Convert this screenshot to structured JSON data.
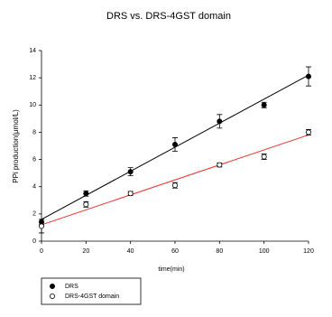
{
  "chart_data": {
    "type": "scatter",
    "title": "DRS vs. DRS-4GST domain",
    "x_label": "time(min)",
    "y_label": "PPi production(μmol/L)",
    "xlim": [
      0,
      120
    ],
    "xticks": [
      0,
      20,
      40,
      60,
      80,
      100,
      120
    ],
    "ylim": [
      0,
      14
    ],
    "yticks": [
      0,
      2,
      4,
      6,
      8,
      10,
      12,
      14
    ],
    "legend": "bottom-left",
    "series": [
      {
        "name": "DRS",
        "color": "#000000",
        "marker": "filled",
        "x": [
          0,
          20,
          40,
          60,
          80,
          100,
          120
        ],
        "values": [
          1.4,
          3.5,
          5.1,
          7.1,
          8.8,
          10.0,
          12.1
        ],
        "errors": [
          0.2,
          0.2,
          0.3,
          0.5,
          0.5,
          0.2,
          0.7
        ],
        "fit_color": "#000000",
        "fit_x": [
          0,
          120
        ],
        "fit": [
          1.6,
          12.2
        ]
      },
      {
        "name": "DRS-4GST domain",
        "color": "#000000",
        "marker": "open",
        "x": [
          0,
          20,
          40,
          60,
          80,
          100,
          120
        ],
        "values": [
          1.1,
          2.7,
          3.5,
          4.1,
          5.6,
          6.2,
          8.0
        ],
        "errors": [
          0.5,
          0.2,
          0.15,
          0.2,
          0.15,
          0.2,
          0.2
        ],
        "fit_color": "#e8302a",
        "fit_x": [
          0,
          120
        ],
        "fit": [
          1.2,
          7.8
        ]
      }
    ]
  }
}
